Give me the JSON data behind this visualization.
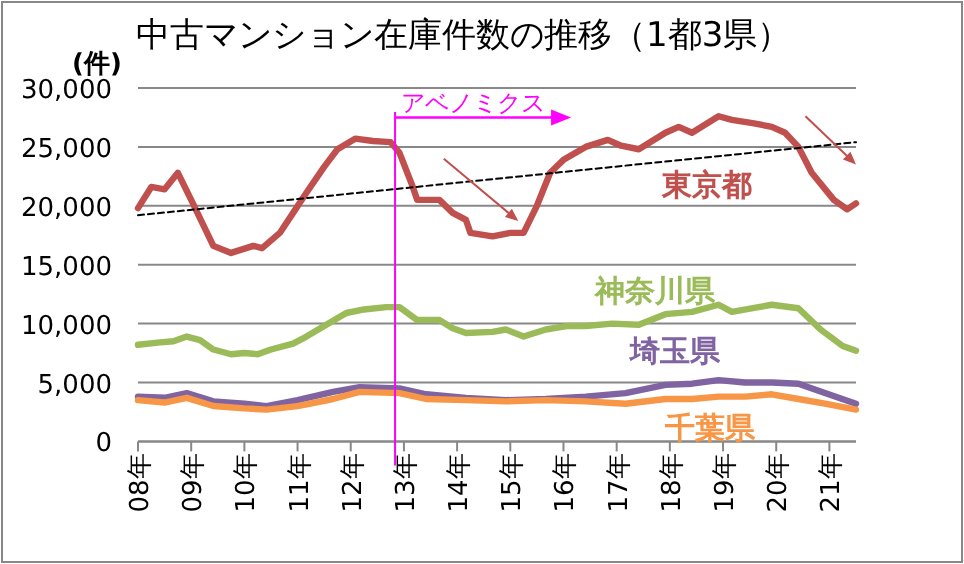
{
  "chart_data": {
    "type": "line",
    "title": "中古マンション在庫件数の推移（1都3県）",
    "ylabel": "(件)",
    "xlim": [
      "2008-01",
      "2021-07"
    ],
    "xticks": [
      {
        "value": "2008-01",
        "label": "08年"
      },
      {
        "value": "2009-01",
        "label": "09年"
      },
      {
        "value": "2010-01",
        "label": "10年"
      },
      {
        "value": "2011-01",
        "label": "11年"
      },
      {
        "value": "2012-01",
        "label": "12年"
      },
      {
        "value": "2013-01",
        "label": "13年"
      },
      {
        "value": "2014-01",
        "label": "14年"
      },
      {
        "value": "2015-01",
        "label": "15年"
      },
      {
        "value": "2016-01",
        "label": "16年"
      },
      {
        "value": "2017-01",
        "label": "17年"
      },
      {
        "value": "2018-01",
        "label": "18年"
      },
      {
        "value": "2019-01",
        "label": "19年"
      },
      {
        "value": "2020-01",
        "label": "20年"
      },
      {
        "value": "2021-01",
        "label": "21年"
      }
    ],
    "ylim": [
      0,
      30000
    ],
    "yticks": [
      {
        "value": 0,
        "label": "0"
      },
      {
        "value": 5000,
        "label": "5,000"
      },
      {
        "value": 10000,
        "label": "10,000"
      },
      {
        "value": 15000,
        "label": "15,000"
      },
      {
        "value": 20000,
        "label": "20,000"
      },
      {
        "value": 25000,
        "label": "25,000"
      },
      {
        "value": 30000,
        "label": "30,000"
      }
    ],
    "grid": "y",
    "legend": false,
    "marker": "none",
    "line_style": "solid",
    "series": [
      {
        "name": "東京都",
        "color": "#c0504d",
        "x": [
          "2008-01",
          "2008-04",
          "2008-07",
          "2008-10",
          "2009-01",
          "2009-06",
          "2009-10",
          "2010-03",
          "2010-05",
          "2010-09",
          "2010-12",
          "2011-03",
          "2011-07",
          "2011-10",
          "2012-02",
          "2012-06",
          "2012-10",
          "2012-12",
          "2013-03",
          "2013-04",
          "2013-09",
          "2013-12",
          "2014-03",
          "2014-04",
          "2014-09",
          "2015-01",
          "2015-04",
          "2015-07",
          "2015-10",
          "2016-01",
          "2016-06",
          "2016-11",
          "2017-02",
          "2017-06",
          "2017-12",
          "2018-03",
          "2018-06",
          "2018-12",
          "2019-03",
          "2019-08",
          "2019-12",
          "2020-03",
          "2020-06",
          "2020-09",
          "2021-02",
          "2021-05",
          "2021-07"
        ],
        "values": [
          19800,
          21600,
          21400,
          22800,
          20500,
          16600,
          16000,
          16600,
          16400,
          17700,
          19400,
          21100,
          23300,
          24800,
          25700,
          25500,
          25400,
          24500,
          21600,
          20500,
          20500,
          19400,
          18800,
          17700,
          17400,
          17700,
          17700,
          20000,
          22800,
          23900,
          25000,
          25600,
          25100,
          24800,
          26200,
          26700,
          26200,
          27600,
          27300,
          27000,
          26700,
          26200,
          25000,
          22800,
          20500,
          19700,
          20200
        ]
      },
      {
        "name": "神奈川県",
        "color": "#9bbb59",
        "x": [
          "2008-01",
          "2008-06",
          "2008-09",
          "2008-12",
          "2009-03",
          "2009-06",
          "2009-10",
          "2010-01",
          "2010-04",
          "2010-07",
          "2010-12",
          "2011-03",
          "2011-07",
          "2011-12",
          "2012-04",
          "2012-09",
          "2012-12",
          "2013-04",
          "2013-09",
          "2013-12",
          "2014-03",
          "2014-09",
          "2014-12",
          "2015-04",
          "2015-09",
          "2016-02",
          "2016-06",
          "2016-12",
          "2017-06",
          "2017-12",
          "2018-06",
          "2018-12",
          "2019-03",
          "2019-09",
          "2019-12",
          "2020-06",
          "2020-11",
          "2021-04",
          "2021-07"
        ],
        "values": [
          8200,
          8400,
          8500,
          8900,
          8600,
          7800,
          7400,
          7500,
          7400,
          7800,
          8300,
          8900,
          9800,
          10900,
          11200,
          11400,
          11400,
          10300,
          10300,
          9600,
          9200,
          9300,
          9500,
          8900,
          9500,
          9800,
          9800,
          10000,
          9900,
          10800,
          11000,
          11600,
          11000,
          11400,
          11600,
          11300,
          9500,
          8100,
          7700
        ]
      },
      {
        "name": "埼玉県",
        "color": "#8064a2",
        "x": [
          "2008-01",
          "2008-07",
          "2008-12",
          "2009-06",
          "2010-01",
          "2010-06",
          "2011-01",
          "2011-09",
          "2012-03",
          "2012-12",
          "2013-06",
          "2014-03",
          "2014-12",
          "2015-09",
          "2016-06",
          "2017-03",
          "2017-12",
          "2018-06",
          "2018-12",
          "2019-06",
          "2019-12",
          "2020-06",
          "2020-12",
          "2021-07"
        ],
        "values": [
          3800,
          3700,
          4100,
          3400,
          3200,
          3000,
          3500,
          4200,
          4600,
          4500,
          4000,
          3700,
          3500,
          3600,
          3800,
          4100,
          4800,
          4900,
          5200,
          5000,
          5000,
          4900,
          4100,
          3200
        ]
      },
      {
        "name": "千葉県",
        "color": "#f79646",
        "x": [
          "2008-01",
          "2008-07",
          "2008-12",
          "2009-06",
          "2010-01",
          "2010-06",
          "2011-01",
          "2011-09",
          "2012-03",
          "2012-12",
          "2013-06",
          "2014-03",
          "2014-12",
          "2015-09",
          "2016-06",
          "2017-03",
          "2017-12",
          "2018-06",
          "2018-12",
          "2019-06",
          "2019-12",
          "2020-06",
          "2020-12",
          "2021-07"
        ],
        "values": [
          3500,
          3300,
          3700,
          3000,
          2800,
          2700,
          3000,
          3600,
          4200,
          4100,
          3600,
          3500,
          3400,
          3500,
          3400,
          3200,
          3600,
          3600,
          3800,
          3800,
          4000,
          3600,
          3200,
          2700
        ]
      },
      {
        "type": "line",
        "line_style": "dashed",
        "color": "#000000",
        "x": [
          "2008-01",
          "2021-07"
        ],
        "values": [
          19200,
          25400
        ]
      }
    ],
    "ref_lines": [
      {
        "axis": "x",
        "value": "2012-11",
        "color": "#ff00ff"
      }
    ],
    "annotations": [
      {
        "text": "アベノミクス",
        "x": "2012-11",
        "y": 27500
      }
    ]
  }
}
